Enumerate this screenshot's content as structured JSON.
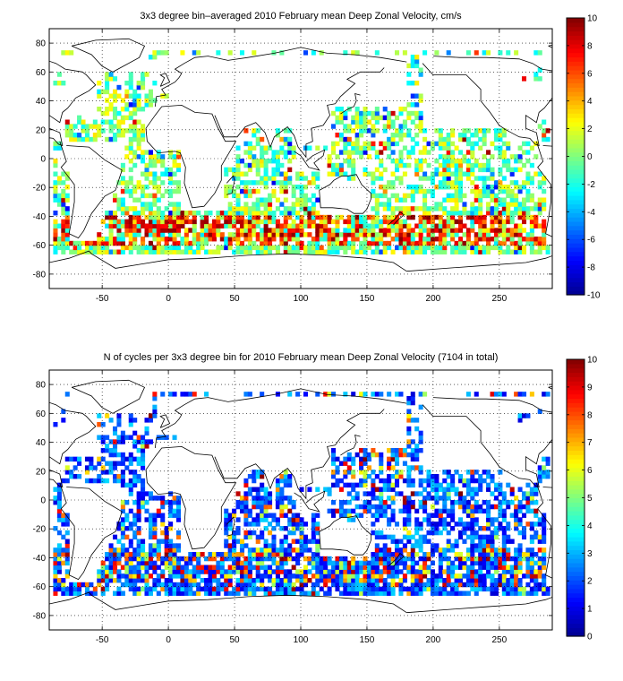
{
  "figure": {
    "background": "#ffffff"
  },
  "colormap": [
    "#00008f",
    "#0000ff",
    "#007fff",
    "#00ffff",
    "#7fff7f",
    "#ffff00",
    "#ff7f00",
    "#ff0000",
    "#800000"
  ],
  "chart_data": [
    {
      "type": "heatmap",
      "title": "3x3 degree bin–averaged 2010 February mean Deep Zonal Velocity, cm/s",
      "xlabel": "",
      "ylabel": "",
      "xlim": [
        -90,
        290
      ],
      "ylim": [
        -90,
        90
      ],
      "xticks": [
        -50,
        0,
        50,
        100,
        150,
        200,
        250
      ],
      "yticks": [
        -80,
        -60,
        -40,
        -20,
        0,
        20,
        40,
        60,
        80
      ],
      "grid": true,
      "colorbar": {
        "min": -10,
        "max": 10,
        "ticks": [
          -10,
          -8,
          -6,
          -4,
          -2,
          0,
          2,
          4,
          6,
          8,
          10
        ]
      },
      "bin_size_deg": 3,
      "description_of_values": "per-bin mean deep zonal velocity; strong eastward (+8 to +10) band along the Antarctic Circumpolar Current near 45–60°S, mostly -3 to +3 elsewhere in ocean basins"
    },
    {
      "type": "heatmap",
      "title": "N of cycles per 3x3 degree bin for 2010 February mean Deep Zonal Velocity (7104 in total)",
      "xlabel": "",
      "ylabel": "",
      "xlim": [
        -90,
        290
      ],
      "ylim": [
        -90,
        90
      ],
      "xticks": [
        -50,
        0,
        50,
        100,
        150,
        200,
        250
      ],
      "yticks": [
        -80,
        -60,
        -40,
        -20,
        0,
        20,
        40,
        60,
        80
      ],
      "grid": true,
      "colorbar": {
        "min": 0,
        "max": 10,
        "ticks": [
          0,
          1,
          2,
          3,
          4,
          5,
          6,
          7,
          8,
          9,
          10
        ]
      },
      "bin_size_deg": 3,
      "total_cycles": 7104,
      "description_of_values": "per-bin count of float cycles, mostly 1–3 with scattered higher counts (6–10) in the Kuroshio region and Southern Ocean"
    }
  ]
}
